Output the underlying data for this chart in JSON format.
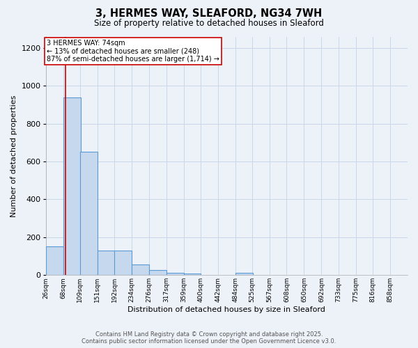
{
  "title_line1": "3, HERMES WAY, SLEAFORD, NG34 7WH",
  "title_line2": "Size of property relative to detached houses in Sleaford",
  "xlabel": "Distribution of detached houses by size in Sleaford",
  "ylabel": "Number of detached properties",
  "bin_labels": [
    "26sqm",
    "68sqm",
    "109sqm",
    "151sqm",
    "192sqm",
    "234sqm",
    "276sqm",
    "317sqm",
    "359sqm",
    "400sqm",
    "442sqm",
    "484sqm",
    "525sqm",
    "567sqm",
    "608sqm",
    "650sqm",
    "692sqm",
    "733sqm",
    "775sqm",
    "816sqm",
    "858sqm"
  ],
  "bin_edges": [
    26,
    68,
    109,
    151,
    192,
    234,
    276,
    317,
    359,
    400,
    442,
    484,
    525,
    567,
    608,
    650,
    692,
    733,
    775,
    816,
    858
  ],
  "bar_heights": [
    150,
    940,
    650,
    130,
    130,
    55,
    25,
    12,
    10,
    0,
    0,
    12,
    0,
    0,
    0,
    0,
    0,
    0,
    0,
    0,
    0
  ],
  "bar_color": "#c5d8ee",
  "bar_edge_color": "#5b9bd5",
  "property_line_x": 74,
  "property_line_color": "#cc0000",
  "annotation_line1": "3 HERMES WAY: 74sqm",
  "annotation_line2": "← 13% of detached houses are smaller (248)",
  "annotation_line3": "87% of semi-detached houses are larger (1,714) →",
  "annotation_box_color": "#ffffff",
  "annotation_box_edge": "#cc0000",
  "ylim": [
    0,
    1260
  ],
  "yticks": [
    0,
    200,
    400,
    600,
    800,
    1000,
    1200
  ],
  "grid_color": "#c8d8e8",
  "bg_color": "#edf2f9",
  "footer_line1": "Contains HM Land Registry data © Crown copyright and database right 2025.",
  "footer_line2": "Contains public sector information licensed under the Open Government Licence v3.0."
}
